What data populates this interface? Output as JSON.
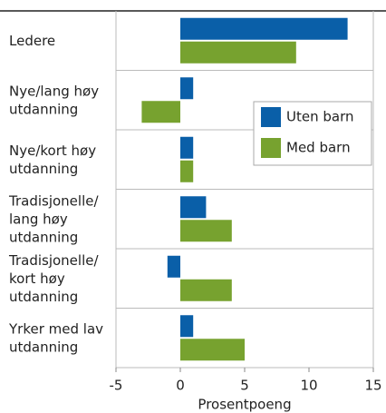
{
  "chart_data": {
    "type": "barh",
    "categories": [
      "Ledere",
      "Nye/lang høy\nutdanning",
      "Nye/kort høy\nutdanning",
      "Tradisjonelle/\nlang høy\nutdanning",
      "Tradisjonelle/\nkort høy\nutdanning",
      "Yrker med lav\nutdanning"
    ],
    "series": [
      {
        "name": "Uten barn",
        "color": "#0a5fa8",
        "values": [
          13,
          1,
          1,
          2,
          -1,
          1
        ]
      },
      {
        "name": "Med barn",
        "color": "#77a22f",
        "values": [
          9,
          -3,
          1,
          4,
          4,
          5
        ]
      }
    ],
    "xlabel": "Prosentpoeng",
    "xlim": [
      -5,
      15
    ],
    "xticks": [
      -5,
      0,
      5,
      10,
      15
    ],
    "legend": "upper right"
  }
}
